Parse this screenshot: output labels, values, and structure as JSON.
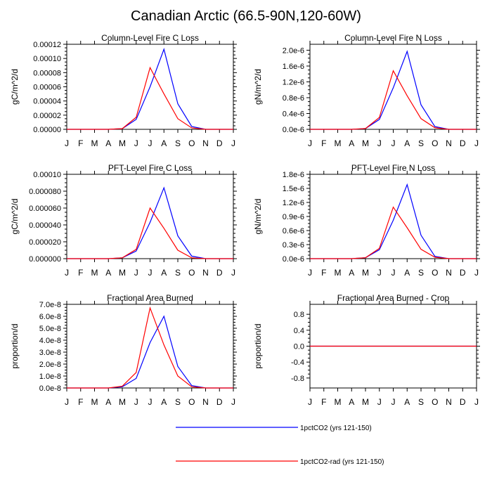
{
  "figure": {
    "title": "Canadian Arctic (66.5-90N,120-60W)"
  },
  "legend": {
    "placement": "bottom-center",
    "entries": [
      {
        "label": "1pctCO2 (yrs 121-150)",
        "color": "#0000ff"
      },
      {
        "label": "1pctCO2-rad (yrs 121-150)",
        "color": "#ff0000"
      }
    ]
  },
  "chart_data": [
    {
      "type": "line",
      "title": "Column-Level Fire C Loss",
      "ylabel": "gC/m^2/d",
      "x": [
        "J",
        "F",
        "M",
        "A",
        "M",
        "J",
        "J",
        "A",
        "S",
        "O",
        "N",
        "D",
        "J"
      ],
      "ylim": [
        0,
        0.00012
      ],
      "yticks": [
        "0.00000",
        "0.00002",
        "0.00004",
        "0.00006",
        "0.00008",
        "0.00010",
        "0.00012"
      ],
      "series": [
        {
          "name": "1pctCO2 (yrs 121-150)",
          "color": "#0000ff",
          "values": [
            0,
            0,
            0,
            0,
            1e-06,
            1.4e-05,
            6e-05,
            0.000113,
            3.6e-05,
            4e-06,
            0,
            0,
            0
          ]
        },
        {
          "name": "1pctCO2-rad (yrs 121-150)",
          "color": "#ff0000",
          "values": [
            0,
            0,
            0,
            0,
            1e-06,
            1.7e-05,
            8.7e-05,
            5e-05,
            1.5e-05,
            2e-06,
            0,
            0,
            0
          ]
        }
      ]
    },
    {
      "type": "line",
      "title": "Column-Level Fire N Loss",
      "ylabel": "gN/m^2/d",
      "x": [
        "J",
        "F",
        "M",
        "A",
        "M",
        "J",
        "J",
        "A",
        "S",
        "O",
        "N",
        "D",
        "J"
      ],
      "ylim": [
        0,
        2.15e-06
      ],
      "yticks": [
        "0.0e-6",
        "0.4e-6",
        "0.8e-6",
        "1.2e-6",
        "1.6e-6",
        "2.0e-6"
      ],
      "series": [
        {
          "name": "1pctCO2 (yrs 121-150)",
          "color": "#0000ff",
          "values": [
            0,
            0,
            0,
            0,
            2e-08,
            2.5e-07,
            1.05e-06,
            1.97e-06,
            6.2e-07,
            7e-08,
            0,
            0,
            0
          ]
        },
        {
          "name": "1pctCO2-rad (yrs 121-150)",
          "color": "#ff0000",
          "values": [
            0,
            0,
            0,
            0,
            2e-08,
            3e-07,
            1.48e-06,
            8.5e-07,
            2.7e-07,
            4e-08,
            0,
            0,
            0
          ]
        }
      ]
    },
    {
      "type": "line",
      "title": "PFT-Level Fire C Loss",
      "ylabel": "gC/m^2/d",
      "x": [
        "J",
        "F",
        "M",
        "A",
        "M",
        "J",
        "J",
        "A",
        "S",
        "O",
        "N",
        "D",
        "J"
      ],
      "ylim": [
        0,
        0.0001
      ],
      "yticks": [
        "0.000000",
        "0.000020",
        "0.000040",
        "0.000060",
        "0.000080",
        "0.00010"
      ],
      "series": [
        {
          "name": "1pctCO2 (yrs 121-150)",
          "color": "#0000ff",
          "values": [
            0,
            0,
            0,
            0,
            1e-06,
            9e-06,
            4.3e-05,
            8.4e-05,
            2.7e-05,
            3e-06,
            0,
            0,
            0
          ]
        },
        {
          "name": "1pctCO2-rad (yrs 121-150)",
          "color": "#ff0000",
          "values": [
            0,
            0,
            0,
            0,
            1e-06,
            1.1e-05,
            6e-05,
            3.6e-05,
            1e-05,
            1e-06,
            0,
            0,
            0
          ]
        }
      ]
    },
    {
      "type": "line",
      "title": "PFT-Level Fire N Loss",
      "ylabel": "gN/m^2/d",
      "x": [
        "J",
        "F",
        "M",
        "A",
        "M",
        "J",
        "J",
        "A",
        "S",
        "O",
        "N",
        "D",
        "J"
      ],
      "ylim": [
        0,
        1.8e-06
      ],
      "yticks": [
        "0.0e-6",
        "0.3e-6",
        "0.6e-6",
        "0.9e-6",
        "1.2e-6",
        "1.5e-6",
        "1.8e-6"
      ],
      "series": [
        {
          "name": "1pctCO2 (yrs 121-150)",
          "color": "#0000ff",
          "values": [
            0,
            0,
            0,
            0,
            2e-08,
            1.9e-07,
            8.2e-07,
            1.58e-06,
            5e-07,
            5e-08,
            0,
            0,
            0
          ]
        },
        {
          "name": "1pctCO2-rad (yrs 121-150)",
          "color": "#ff0000",
          "values": [
            0,
            0,
            0,
            0,
            2e-08,
            2.2e-07,
            1.1e-06,
            6.6e-07,
            2e-07,
            3e-08,
            0,
            0,
            0
          ]
        }
      ]
    },
    {
      "type": "line",
      "title": "Fractional Area Burned",
      "ylabel": "proportion/d",
      "x": [
        "J",
        "F",
        "M",
        "A",
        "M",
        "J",
        "J",
        "A",
        "S",
        "O",
        "N",
        "D",
        "J"
      ],
      "ylim": [
        0,
        7e-08
      ],
      "yticks": [
        "0.0e-8",
        "1.0e-8",
        "2.0e-8",
        "3.0e-8",
        "4.0e-8",
        "5.0e-8",
        "6.0e-8",
        "7.0e-8"
      ],
      "series": [
        {
          "name": "1pctCO2 (yrs 121-150)",
          "color": "#0000ff",
          "values": [
            0,
            0,
            0,
            0,
            1e-09,
            8e-09,
            3.8e-08,
            6e-08,
            1.8e-08,
            2e-09,
            0,
            0,
            0
          ]
        },
        {
          "name": "1pctCO2-rad (yrs 121-150)",
          "color": "#ff0000",
          "values": [
            0,
            0,
            0,
            0,
            1.5e-09,
            1.3e-08,
            6.7e-08,
            3.6e-08,
            1e-08,
            1e-09,
            0,
            0,
            0
          ]
        }
      ]
    },
    {
      "type": "line",
      "title": "Fractional Area Burned - Crop",
      "ylabel": "proportion/d",
      "x": [
        "J",
        "F",
        "M",
        "A",
        "M",
        "J",
        "J",
        "A",
        "S",
        "O",
        "N",
        "D",
        "J"
      ],
      "ylim": [
        -1.05,
        1.05
      ],
      "ytick_values": [
        -0.8,
        -0.4,
        0.0,
        0.4,
        0.8
      ],
      "yticks": [
        "-0.8",
        "-0.4",
        "0.0",
        "0.4",
        "0.8"
      ],
      "series": [
        {
          "name": "1pctCO2 (yrs 121-150)",
          "color": "#0000ff",
          "values": [
            0,
            0,
            0,
            0,
            0,
            0,
            0,
            0,
            0,
            0,
            0,
            0,
            0
          ]
        },
        {
          "name": "1pctCO2-rad (yrs 121-150)",
          "color": "#ff0000",
          "values": [
            0,
            0,
            0,
            0,
            0,
            0,
            0,
            0,
            0,
            0,
            0,
            0,
            0
          ]
        }
      ]
    }
  ]
}
